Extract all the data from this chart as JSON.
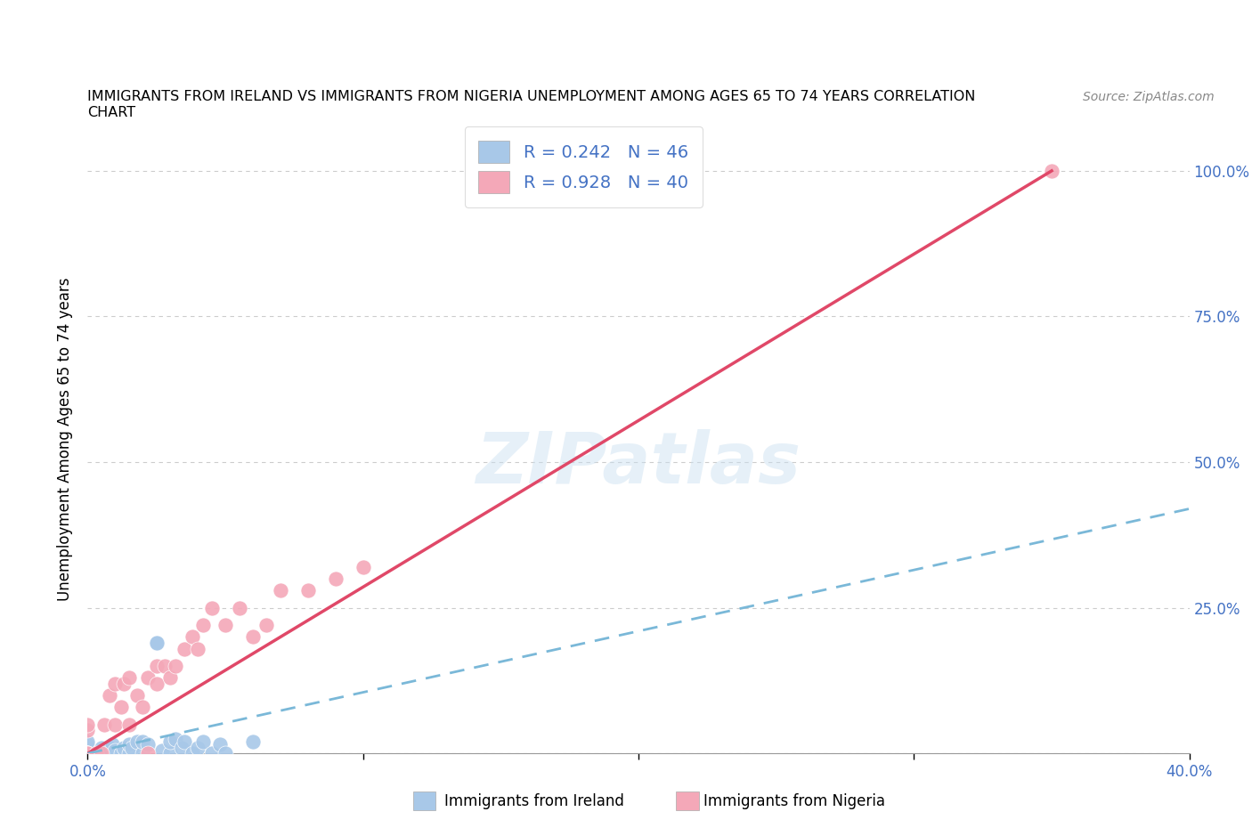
{
  "title_line1": "IMMIGRANTS FROM IRELAND VS IMMIGRANTS FROM NIGERIA UNEMPLOYMENT AMONG AGES 65 TO 74 YEARS CORRELATION",
  "title_line2": "CHART",
  "source": "Source: ZipAtlas.com",
  "ylabel": "Unemployment Among Ages 65 to 74 years",
  "xlim": [
    0.0,
    0.4
  ],
  "ylim": [
    0.0,
    1.08
  ],
  "ytick_positions": [
    0.0,
    0.25,
    0.5,
    0.75,
    1.0
  ],
  "ytick_labels": [
    "",
    "25.0%",
    "50.0%",
    "75.0%",
    "100.0%"
  ],
  "xtick_positions": [
    0.0,
    0.1,
    0.2,
    0.3,
    0.4
  ],
  "xtick_labels": [
    "0.0%",
    "",
    "",
    "",
    "40.0%"
  ],
  "ireland_R": 0.242,
  "ireland_N": 46,
  "nigeria_R": 0.928,
  "nigeria_N": 40,
  "ireland_color": "#a8c8e8",
  "nigeria_color": "#f4a8b8",
  "ireland_line_color": "#7ab8d8",
  "nigeria_line_color": "#e04868",
  "watermark": "ZIPatlas",
  "ireland_scatter_x": [
    0.0,
    0.0,
    0.0,
    0.0,
    0.0,
    0.0,
    0.0,
    0.0,
    0.0,
    0.0,
    0.0,
    0.0,
    0.0,
    0.004,
    0.005,
    0.005,
    0.006,
    0.007,
    0.008,
    0.009,
    0.01,
    0.01,
    0.012,
    0.013,
    0.015,
    0.015,
    0.016,
    0.018,
    0.02,
    0.02,
    0.022,
    0.025,
    0.025,
    0.027,
    0.03,
    0.03,
    0.032,
    0.034,
    0.035,
    0.038,
    0.04,
    0.042,
    0.045,
    0.048,
    0.05,
    0.06
  ],
  "ireland_scatter_y": [
    0.0,
    0.0,
    0.0,
    0.0,
    0.0,
    0.0,
    0.0,
    0.0,
    0.005,
    0.007,
    0.01,
    0.015,
    0.02,
    0.0,
    0.0,
    0.01,
    0.0,
    0.005,
    0.01,
    0.015,
    0.0,
    0.005,
    0.0,
    0.01,
    0.0,
    0.015,
    0.01,
    0.02,
    0.0,
    0.02,
    0.015,
    0.19,
    0.19,
    0.005,
    0.0,
    0.02,
    0.025,
    0.01,
    0.02,
    0.0,
    0.01,
    0.02,
    0.0,
    0.015,
    0.0,
    0.02
  ],
  "nigeria_scatter_x": [
    0.0,
    0.0,
    0.0,
    0.0,
    0.0,
    0.0,
    0.0,
    0.003,
    0.005,
    0.006,
    0.008,
    0.01,
    0.01,
    0.012,
    0.013,
    0.015,
    0.015,
    0.018,
    0.02,
    0.022,
    0.022,
    0.025,
    0.025,
    0.028,
    0.03,
    0.032,
    0.035,
    0.038,
    0.04,
    0.042,
    0.045,
    0.05,
    0.055,
    0.06,
    0.065,
    0.07,
    0.08,
    0.09,
    0.1,
    0.35
  ],
  "nigeria_scatter_y": [
    0.0,
    0.0,
    0.0,
    0.04,
    0.05,
    0.0,
    0.0,
    0.0,
    0.0,
    0.05,
    0.1,
    0.05,
    0.12,
    0.08,
    0.12,
    0.05,
    0.13,
    0.1,
    0.08,
    0.13,
    0.0,
    0.12,
    0.15,
    0.15,
    0.13,
    0.15,
    0.18,
    0.2,
    0.18,
    0.22,
    0.25,
    0.22,
    0.25,
    0.2,
    0.22,
    0.28,
    0.28,
    0.3,
    0.32,
    1.0
  ],
  "nigeria_line_x": [
    0.0,
    0.35
  ],
  "nigeria_line_y": [
    0.0,
    1.0
  ],
  "ireland_line_x": [
    0.0,
    0.4
  ],
  "ireland_line_y": [
    0.0,
    0.42
  ]
}
